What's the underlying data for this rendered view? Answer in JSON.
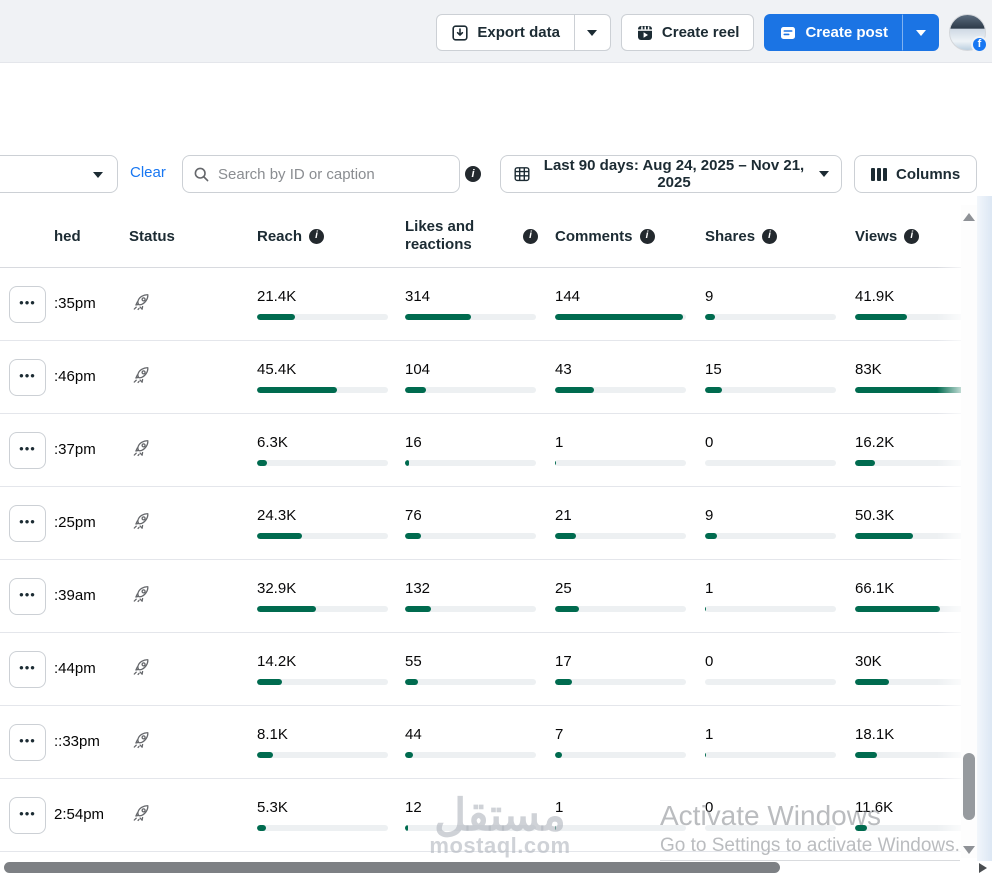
{
  "topbar": {
    "export_label": "Export data",
    "create_reel_label": "Create reel",
    "create_post_label": "Create post"
  },
  "filters": {
    "clear_label": "Clear",
    "search_placeholder": "Search by ID or caption",
    "date_range_label": "Last 90 days: Aug 24, 2025 – Nov 21, 2025",
    "columns_label": "Columns"
  },
  "table": {
    "headers": {
      "published": "hed",
      "status": "Status",
      "reach": "Reach",
      "likes": "Likes and reactions",
      "comments": "Comments",
      "shares": "Shares",
      "views": "Views"
    },
    "more_icon": "•••",
    "rows": [
      {
        "time": ":35pm",
        "reach": "21.4K",
        "likes": "314",
        "comments": "144",
        "shares": "9",
        "views": "41.9K",
        "bars": {
          "reach": 29,
          "likes": 50,
          "comments": 98,
          "shares": 8,
          "views": 40
        }
      },
      {
        "time": ":46pm",
        "reach": "45.4K",
        "likes": "104",
        "comments": "43",
        "shares": "15",
        "views": "83K",
        "bars": {
          "reach": 61,
          "likes": 16,
          "comments": 30,
          "shares": 13,
          "views": 100
        }
      },
      {
        "time": ":37pm",
        "reach": "6.3K",
        "likes": "16",
        "comments": "1",
        "shares": "0",
        "views": "16.2K",
        "bars": {
          "reach": 8,
          "likes": 3,
          "comments": 1,
          "shares": 0,
          "views": 15
        }
      },
      {
        "time": ":25pm",
        "reach": "24.3K",
        "likes": "76",
        "comments": "21",
        "shares": "9",
        "views": "50.3K",
        "bars": {
          "reach": 34,
          "likes": 12,
          "comments": 16,
          "shares": 9,
          "views": 44
        }
      },
      {
        "time": ":39am",
        "reach": "32.9K",
        "likes": "132",
        "comments": "25",
        "shares": "1",
        "views": "66.1K",
        "bars": {
          "reach": 45,
          "likes": 20,
          "comments": 18,
          "shares": 1,
          "views": 65
        }
      },
      {
        "time": ":44pm",
        "reach": "14.2K",
        "likes": "55",
        "comments": "17",
        "shares": "0",
        "views": "30K",
        "bars": {
          "reach": 19,
          "likes": 10,
          "comments": 13,
          "shares": 0,
          "views": 26
        }
      },
      {
        "time": "::33pm",
        "reach": "8.1K",
        "likes": "44",
        "comments": "7",
        "shares": "1",
        "views": "18.1K",
        "bars": {
          "reach": 12,
          "likes": 6,
          "comments": 5,
          "shares": 1,
          "views": 17
        }
      },
      {
        "time": "2:54pm",
        "reach": "5.3K",
        "likes": "12",
        "comments": "1",
        "shares": "0",
        "views": "11.6K",
        "bars": {
          "reach": 7,
          "likes": 2,
          "comments": 1,
          "shares": 0,
          "views": 9
        }
      }
    ]
  },
  "watermark": {
    "arabic": "مستقل",
    "site": "mostaql.com"
  },
  "activation": {
    "line1": "Activate Windows",
    "line2": "Go to Settings to activate Windows."
  },
  "avatar_badge": "f",
  "colors": {
    "accent_blue": "#1b74e4",
    "bar_green": "#006b4f",
    "bar_track": "#edf0f2",
    "topbar_bg": "#f0f2f5"
  }
}
